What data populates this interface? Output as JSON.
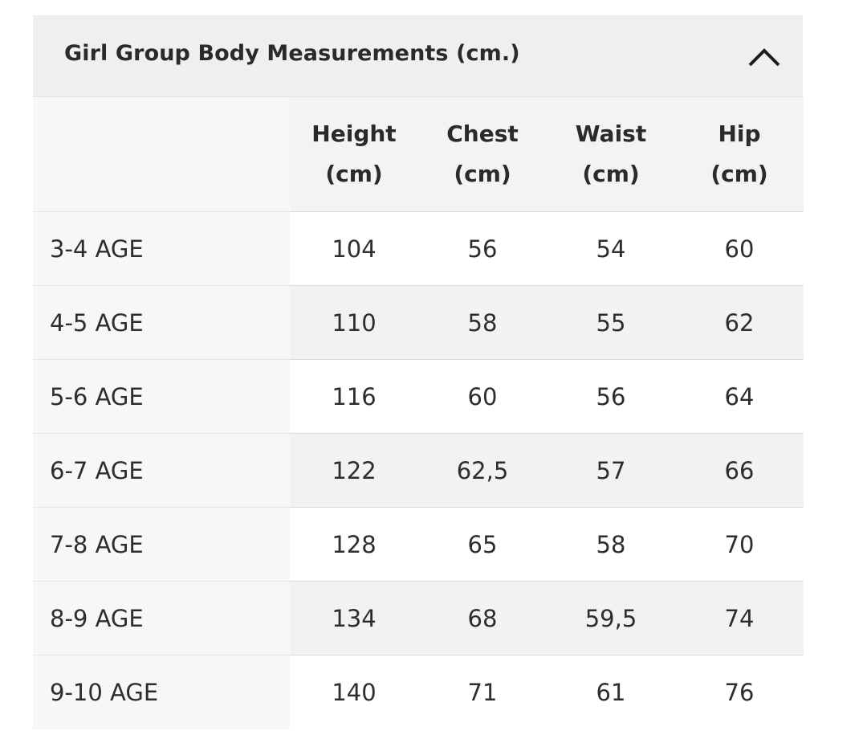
{
  "accordion": {
    "title": "Girl Group Body Measurements (cm.)",
    "toggle_icon": "chevron-up-icon"
  },
  "table": {
    "corner": "",
    "columns": [
      {
        "line1": "Height",
        "line2": "(cm)"
      },
      {
        "line1": "Chest",
        "line2": "(cm)"
      },
      {
        "line1": "Waist",
        "line2": "(cm)"
      },
      {
        "line1": "Hip",
        "line2": "(cm)"
      }
    ],
    "rows": [
      {
        "label": "3-4 AGE",
        "height": "104",
        "chest": "56",
        "waist": "54",
        "hip": "60"
      },
      {
        "label": "4-5 AGE",
        "height": "110",
        "chest": "58",
        "waist": "55",
        "hip": "62"
      },
      {
        "label": "5-6 AGE",
        "height": "116",
        "chest": "60",
        "waist": "56",
        "hip": "64"
      },
      {
        "label": "6-7 AGE",
        "height": "122",
        "chest": "62,5",
        "waist": "57",
        "hip": "66"
      },
      {
        "label": "7-8 AGE",
        "height": "128",
        "chest": "65",
        "waist": "58",
        "hip": "70"
      },
      {
        "label": "8-9 AGE",
        "height": "134",
        "chest": "68",
        "waist": "59,5",
        "hip": "74"
      },
      {
        "label": "9-10 AGE",
        "height": "140",
        "chest": "71",
        "waist": "61",
        "hip": "76"
      }
    ]
  }
}
